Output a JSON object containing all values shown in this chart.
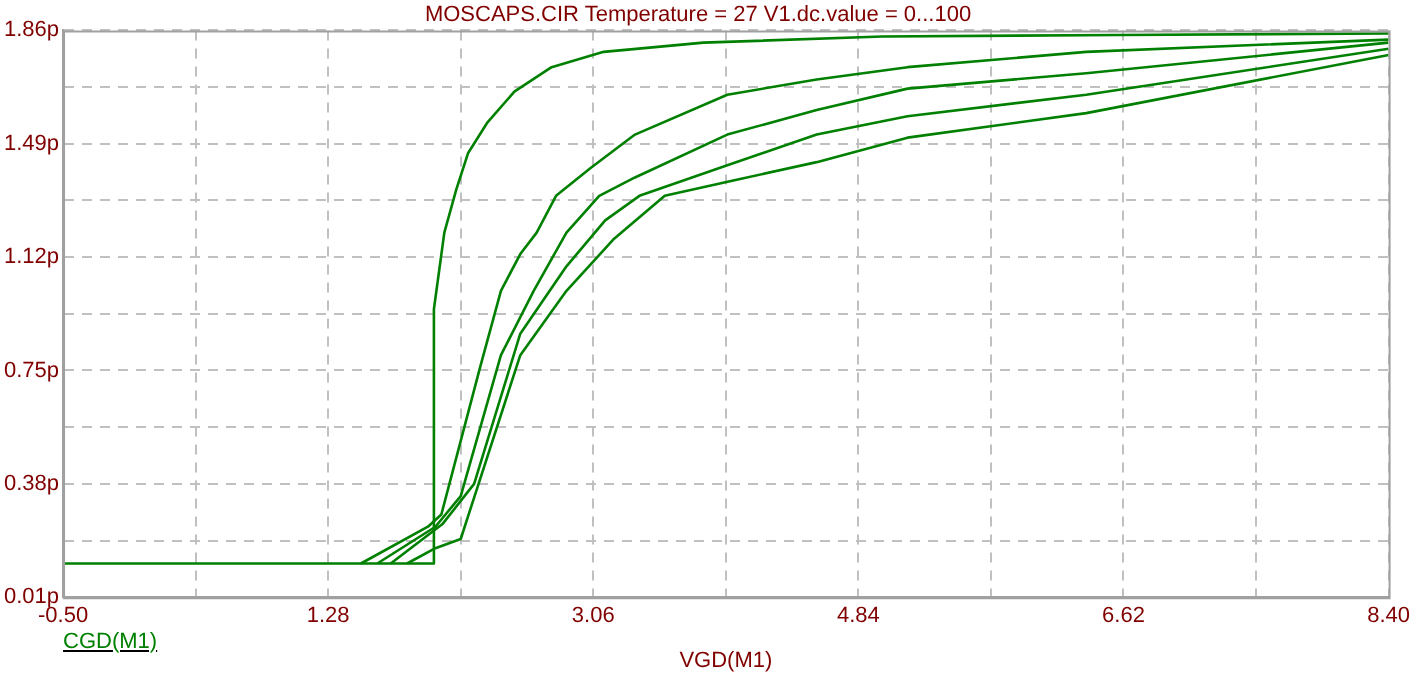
{
  "chart_data": {
    "type": "line",
    "title": "MOSCAPS.CIR Temperature = 27 V1.dc.value = 0...100",
    "xlabel": "VGD(M1)",
    "xlim": [
      -0.5,
      8.4
    ],
    "xticks": [
      {
        "value": -0.5,
        "label": "-0.50"
      },
      {
        "value": 0.39,
        "label": null
      },
      1.28,
      {
        "value": 2.17,
        "label": null
      },
      3.06,
      {
        "value": 3.95,
        "label": null
      },
      4.84,
      {
        "value": 5.73,
        "label": null
      },
      6.62,
      {
        "value": 7.51,
        "label": null
      },
      {
        "value": 8.4,
        "label": "8.40"
      }
    ],
    "ylim": [
      0.01,
      1.86
    ],
    "yticks": [
      {
        "value": 0.01,
        "label": "0.01p"
      },
      {
        "value": 0.195,
        "label": null
      },
      {
        "value": 0.38,
        "label": "0.38p"
      },
      {
        "value": 0.565,
        "label": null
      },
      {
        "value": 0.75,
        "label": "0.75p"
      },
      {
        "value": 0.935,
        "label": null
      },
      {
        "value": 1.12,
        "label": "1.12p"
      },
      {
        "value": 1.305,
        "label": null
      },
      {
        "value": 1.49,
        "label": "1.49p"
      },
      {
        "value": 1.675,
        "label": null
      },
      {
        "value": 1.86,
        "label": "1.86p"
      }
    ],
    "grid": true,
    "legend": "bottom left",
    "marker": "none",
    "line_style": "solid",
    "series": [
      {
        "name": "CGD(M1)",
        "color": "#008000",
        "x": [
          -0.5,
          1.98,
          1.99,
          2.06,
          2.14,
          2.22,
          2.35,
          2.53,
          2.78,
          3.13,
          3.8,
          5.0,
          6.6,
          8.4
        ],
        "values": [
          0.12,
          0.12,
          0.95,
          1.2,
          1.34,
          1.46,
          1.56,
          1.66,
          1.74,
          1.79,
          1.82,
          1.84,
          1.845,
          1.85
        ]
      },
      {
        "color": "#008000",
        "x": [
          1.5,
          1.95,
          2.04,
          2.3,
          2.44,
          2.57,
          2.68,
          2.81,
          3.04,
          3.34,
          3.96,
          4.56,
          5.17,
          6.37,
          8.4
        ],
        "values": [
          0.12,
          0.24,
          0.28,
          0.76,
          1.01,
          1.13,
          1.2,
          1.32,
          1.41,
          1.52,
          1.65,
          1.7,
          1.74,
          1.79,
          1.83
        ]
      },
      {
        "color": "#008000",
        "x": [
          1.61,
          2.0,
          2.17,
          2.44,
          2.66,
          2.88,
          3.1,
          3.34,
          3.96,
          4.56,
          5.17,
          6.37,
          8.4
        ],
        "values": [
          0.12,
          0.24,
          0.34,
          0.8,
          1.01,
          1.2,
          1.32,
          1.38,
          1.52,
          1.6,
          1.67,
          1.72,
          1.82
        ]
      },
      {
        "color": "#008000",
        "x": [
          1.7,
          2.05,
          2.26,
          2.57,
          2.88,
          3.14,
          3.37,
          3.96,
          4.56,
          5.17,
          6.37,
          8.4
        ],
        "values": [
          0.12,
          0.25,
          0.38,
          0.87,
          1.09,
          1.24,
          1.32,
          1.42,
          1.52,
          1.58,
          1.65,
          1.8
        ]
      },
      {
        "color": "#008000",
        "x": [
          1.81,
          2.0,
          2.17,
          2.57,
          2.88,
          3.2,
          3.54,
          4.0,
          4.56,
          5.17,
          6.37,
          8.4
        ],
        "values": [
          0.12,
          0.17,
          0.2,
          0.8,
          1.01,
          1.18,
          1.32,
          1.37,
          1.43,
          1.51,
          1.59,
          1.78
        ]
      }
    ]
  }
}
